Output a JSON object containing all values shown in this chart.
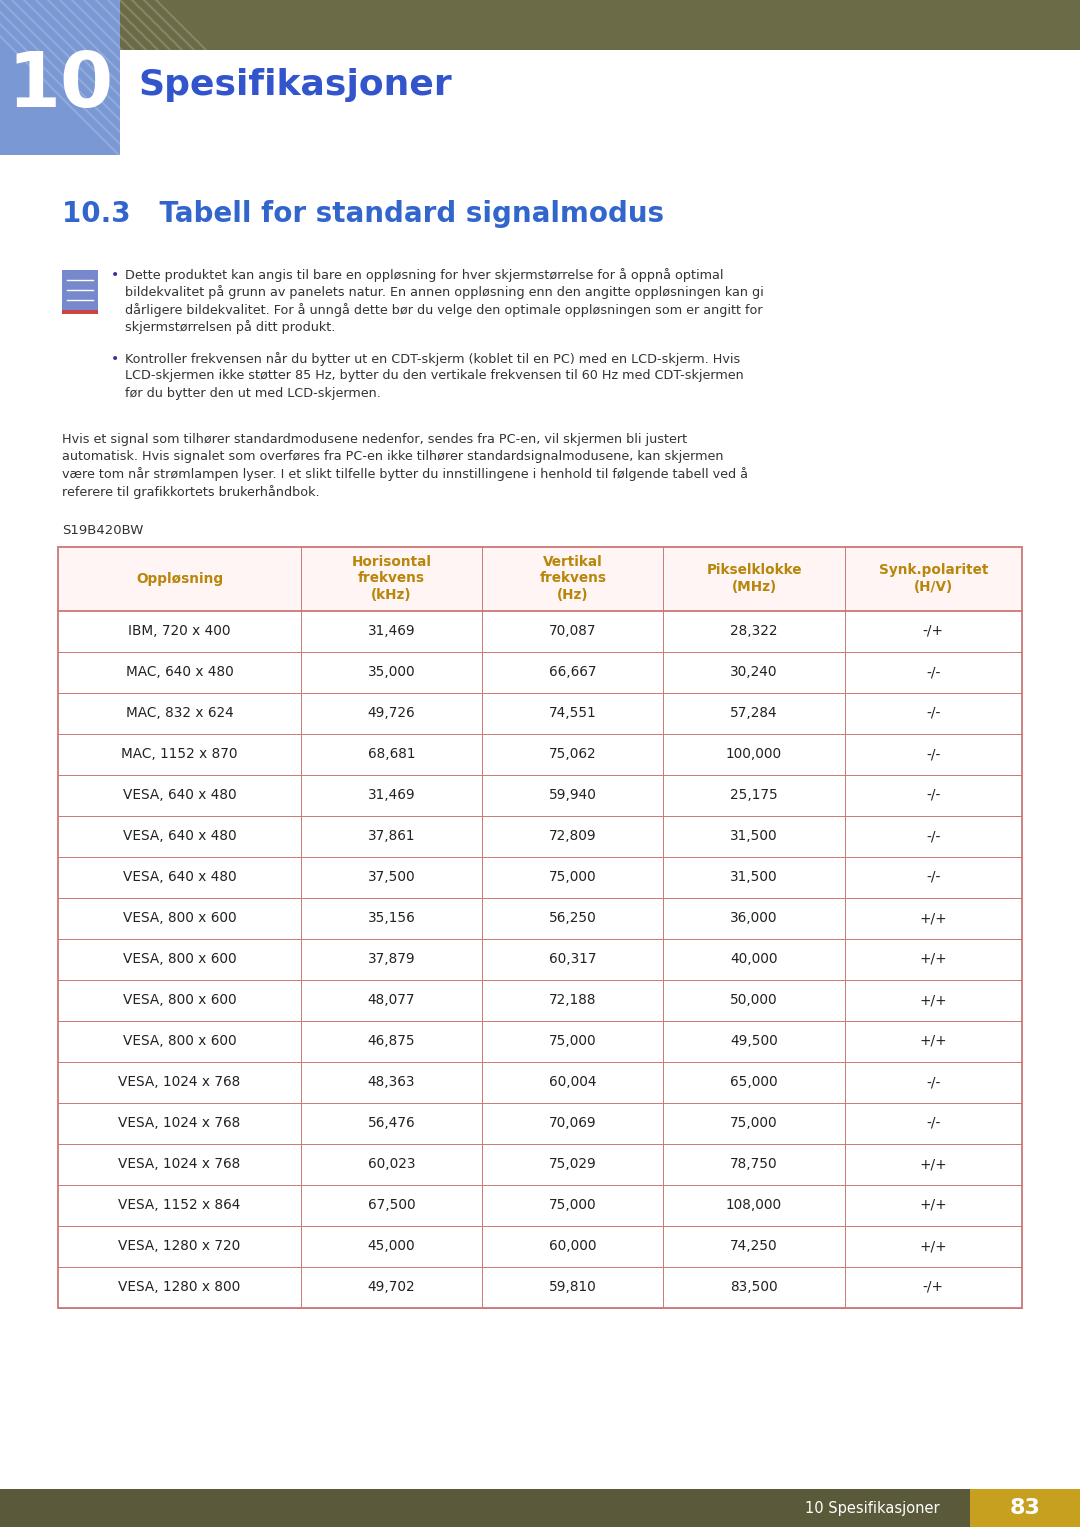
{
  "page_bg": "#ffffff",
  "header_bar_color": "#6b6b47",
  "chapter_num": "10",
  "chapter_num_bg": "#7a99d4",
  "chapter_title": "Spesifikasjoner",
  "chapter_title_color": "#3355cc",
  "section_title": "10.3   Tabell for standard signalmodus",
  "section_title_color": "#3366cc",
  "body_text_color": "#333333",
  "bullet1_lines": [
    "Dette produktet kan angis til bare en oppløsning for hver skjermstørrelse for å oppnå optimal",
    "bildekvalitet på grunn av panelets natur. En annen oppløsning enn den angitte oppløsningen kan gi",
    "dårligere bildekvalitet. For å unngå dette bør du velge den optimale oppløsningen som er angitt for",
    "skjermstørrelsen på ditt produkt."
  ],
  "bullet2_lines": [
    "Kontroller frekvensen når du bytter ut en CDT-skjerm (koblet til en PC) med en LCD-skjerm. Hvis",
    "LCD-skjermen ikke støtter 85 Hz, bytter du den vertikale frekvensen til 60 Hz med CDT-skjermen",
    "før du bytter den ut med LCD-skjermen."
  ],
  "para_lines": [
    "Hvis et signal som tilhører standardmodusene nedenfor, sendes fra PC-en, vil skjermen bli justert",
    "automatisk. Hvis signalet som overføres fra PC-en ikke tilhører standardsignalmodusene, kan skjermen",
    "være tom når strømlampen lyser. I et slikt tilfelle bytter du innstillingene i henhold til følgende tabell ved å",
    "referere til grafikkortets brukerhåndbok."
  ],
  "model_label": "S19B420BW",
  "table_header_bg": "#fff5f5",
  "table_header_text_color": "#b8860b",
  "table_border_color": "#cc7777",
  "col_headers": [
    "Oppløsning",
    "Horisontal\nfrekvens\n(kHz)",
    "Vertikal\nfrekvens\n(Hz)",
    "Pikselklokke\n(MHz)",
    "Synk.polaritet\n(H/V)"
  ],
  "rows": [
    [
      "IBM, 720 x 400",
      "31,469",
      "70,087",
      "28,322",
      "-/+"
    ],
    [
      "MAC, 640 x 480",
      "35,000",
      "66,667",
      "30,240",
      "-/-"
    ],
    [
      "MAC, 832 x 624",
      "49,726",
      "74,551",
      "57,284",
      "-/-"
    ],
    [
      "MAC, 1152 x 870",
      "68,681",
      "75,062",
      "100,000",
      "-/-"
    ],
    [
      "VESA, 640 x 480",
      "31,469",
      "59,940",
      "25,175",
      "-/-"
    ],
    [
      "VESA, 640 x 480",
      "37,861",
      "72,809",
      "31,500",
      "-/-"
    ],
    [
      "VESA, 640 x 480",
      "37,500",
      "75,000",
      "31,500",
      "-/-"
    ],
    [
      "VESA, 800 x 600",
      "35,156",
      "56,250",
      "36,000",
      "+/+"
    ],
    [
      "VESA, 800 x 600",
      "37,879",
      "60,317",
      "40,000",
      "+/+"
    ],
    [
      "VESA, 800 x 600",
      "48,077",
      "72,188",
      "50,000",
      "+/+"
    ],
    [
      "VESA, 800 x 600",
      "46,875",
      "75,000",
      "49,500",
      "+/+"
    ],
    [
      "VESA, 1024 x 768",
      "48,363",
      "60,004",
      "65,000",
      "-/-"
    ],
    [
      "VESA, 1024 x 768",
      "56,476",
      "70,069",
      "75,000",
      "-/-"
    ],
    [
      "VESA, 1024 x 768",
      "60,023",
      "75,029",
      "78,750",
      "+/+"
    ],
    [
      "VESA, 1152 x 864",
      "67,500",
      "75,000",
      "108,000",
      "+/+"
    ],
    [
      "VESA, 1280 x 720",
      "45,000",
      "60,000",
      "74,250",
      "+/+"
    ],
    [
      "VESA, 1280 x 800",
      "49,702",
      "59,810",
      "83,500",
      "-/+"
    ]
  ],
  "footer_text": "10 Spesifikasjoner",
  "footer_page": "83",
  "footer_bg": "#5a5a3a",
  "footer_text_color": "#ffffff",
  "footer_page_bg": "#c8a020"
}
